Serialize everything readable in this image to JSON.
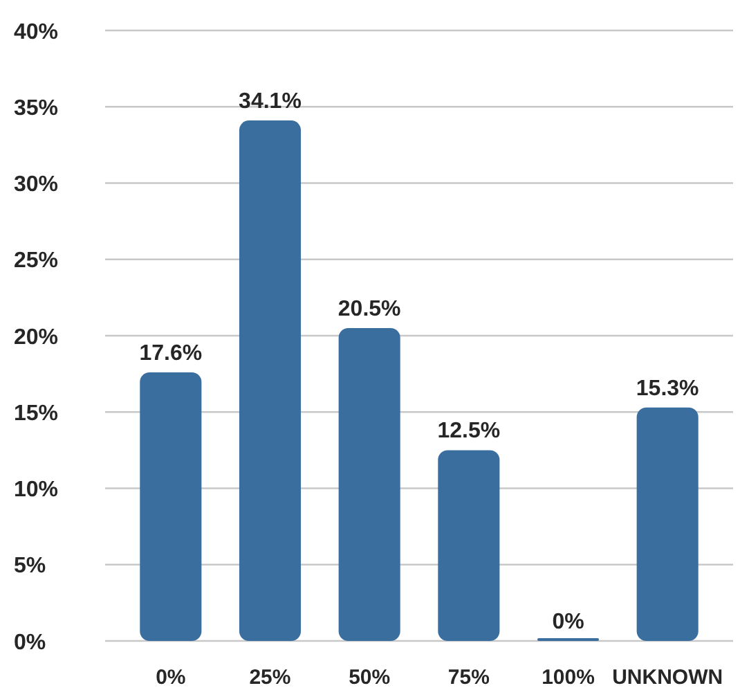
{
  "chart_data": {
    "type": "bar",
    "categories": [
      "0%",
      "25%",
      "50%",
      "75%",
      "100%",
      "UNKNOWN"
    ],
    "values": [
      17.6,
      34.1,
      20.5,
      12.5,
      0,
      15.3
    ],
    "value_labels": [
      "17.6%",
      "34.1%",
      "20.5%",
      "12.5%",
      "0%",
      "15.3%"
    ],
    "color": "#3a6e9f",
    "ylim": [
      0,
      40
    ],
    "yticks": [
      {
        "value": 0,
        "label": "0%"
      },
      {
        "value": 5,
        "label": "5%"
      },
      {
        "value": 10,
        "label": "10%"
      },
      {
        "value": 15,
        "label": "15%"
      },
      {
        "value": 20,
        "label": "20%"
      },
      {
        "value": 25,
        "label": "25%"
      },
      {
        "value": 30,
        "label": "30%"
      },
      {
        "value": 35,
        "label": "35%"
      },
      {
        "value": 40,
        "label": "40%"
      }
    ],
    "grid": "y"
  }
}
